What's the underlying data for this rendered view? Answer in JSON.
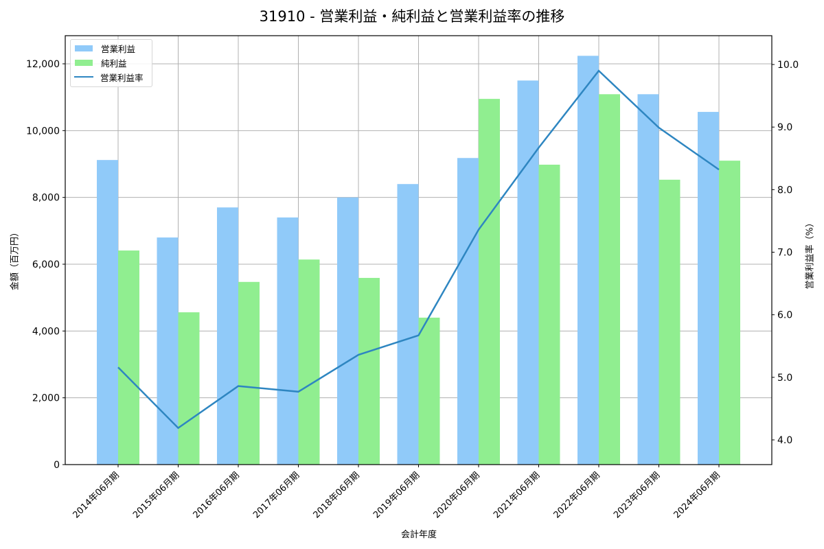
{
  "title": "31910 - 営業利益・純利益と営業利益率の推移",
  "legend": {
    "items": [
      {
        "label": "営業利益",
        "type": "bar",
        "color": "#90caf9"
      },
      {
        "label": "純利益",
        "type": "bar",
        "color": "#90ee90"
      },
      {
        "label": "営業利益率",
        "type": "line",
        "color": "#2e86c1"
      }
    ]
  },
  "axes": {
    "xlabel": "会計年度",
    "ylabel_left": "金額（百万円）",
    "ylabel_right": "営業利益率（%）",
    "left_ticks": [
      "0",
      "2,000",
      "4,000",
      "6,000",
      "8,000",
      "10,000",
      "12,000"
    ],
    "right_ticks": [
      "4.0",
      "5.0",
      "6.0",
      "7.0",
      "8.0",
      "9.0",
      "10.0"
    ]
  },
  "chart_data": {
    "type": "bar",
    "title": "31910 - 営業利益・純利益と営業利益率の推移",
    "xlabel": "会計年度",
    "ylabel": "金額（百万円）",
    "ylabel_secondary": "営業利益率（%）",
    "categories": [
      "2014年06月期",
      "2015年06月期",
      "2016年06月期",
      "2017年06月期",
      "2018年06月期",
      "2019年06月期",
      "2020年06月期",
      "2021年06月期",
      "2022年06月期",
      "2023年06月期",
      "2024年06月期"
    ],
    "series": [
      {
        "name": "営業利益",
        "type": "bar",
        "axis": "left",
        "color": "#90caf9",
        "values": [
          9120,
          6800,
          7700,
          7400,
          8000,
          8400,
          9180,
          11500,
          12240,
          11090,
          10560
        ]
      },
      {
        "name": "純利益",
        "type": "bar",
        "axis": "left",
        "color": "#90ee90",
        "values": [
          6410,
          4560,
          5470,
          6140,
          5590,
          4400,
          10950,
          8980,
          11090,
          8530,
          9100
        ]
      },
      {
        "name": "営業利益率",
        "type": "line",
        "axis": "right",
        "color": "#2e86c1",
        "values": [
          5.16,
          4.19,
          4.86,
          4.77,
          5.36,
          5.67,
          7.36,
          8.67,
          9.9,
          8.99,
          8.32
        ]
      }
    ],
    "ylim": [
      0,
      12840
    ],
    "ylim_secondary": [
      3.6,
      10.46
    ],
    "yticks": [
      0,
      2000,
      4000,
      6000,
      8000,
      10000,
      12000
    ],
    "yticks_secondary": [
      4.0,
      5.0,
      6.0,
      7.0,
      8.0,
      9.0,
      10.0
    ],
    "grid": true,
    "legend_position": "upper left"
  }
}
